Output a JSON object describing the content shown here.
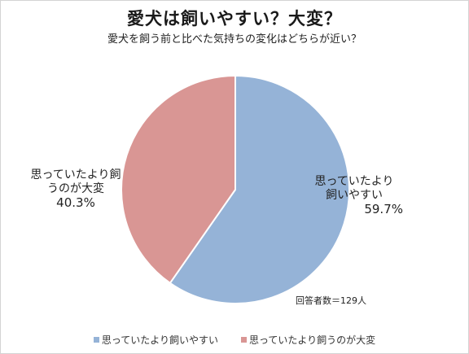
{
  "chart_data": {
    "type": "pie",
    "title": "愛犬は飼いやすい？大変？",
    "subtitle": "愛犬を飼う前と比べた気持ちの変化はどちらが近い？",
    "slices": [
      {
        "label_lines": [
          "思っていたより",
          "飼いやすい"
        ],
        "percent_text": "59.7%",
        "value": 59.7,
        "color": "#95B3D7"
      },
      {
        "label_lines": [
          "思っていたより飼",
          "うのが大変"
        ],
        "percent_text": "40.3%",
        "value": 40.3,
        "color": "#D99694"
      }
    ],
    "legend": [
      {
        "label": "思っていたより飼いやすい",
        "color": "#95B3D7"
      },
      {
        "label": "思っていたより飼うのが大変",
        "color": "#D99694"
      }
    ],
    "legend_position": "bottom",
    "note": "回答者数＝129人",
    "start_angle_deg": 0,
    "direction": "clockwise"
  }
}
